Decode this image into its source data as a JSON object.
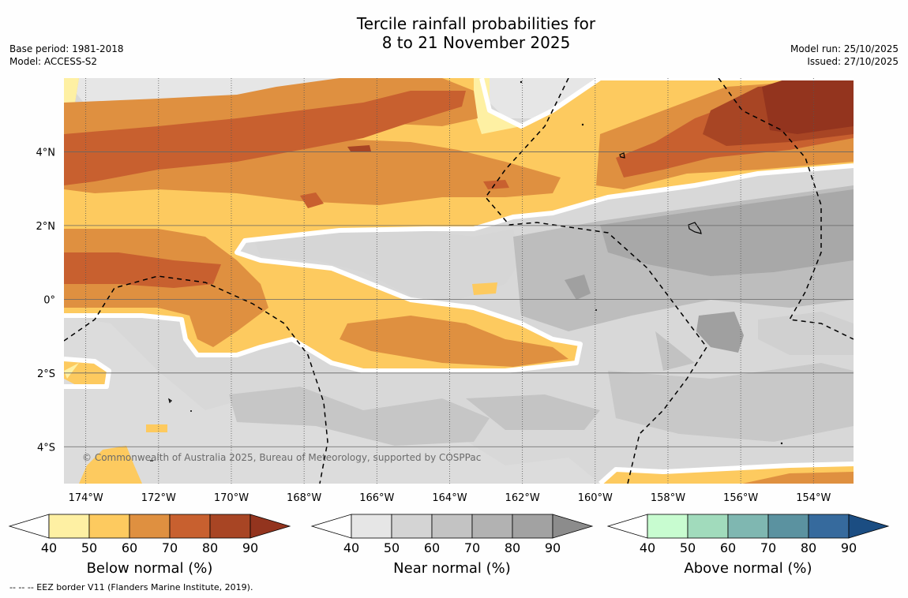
{
  "header": {
    "title_line1": "Tercile rainfall probabilities for",
    "title_line2": "8 to 21 November 2025",
    "base_period": "Base period: 1981-2018",
    "model": "Model: ACCESS-S2",
    "model_run": "Model run: 25/10/2025",
    "issued": "Issued: 27/10/2025"
  },
  "chart_data": {
    "type": "heatmap",
    "title": "Tercile rainfall probabilities for 8 to 21 November 2025",
    "x_ticks": [
      "174°W",
      "172°W",
      "170°W",
      "168°W",
      "166°W",
      "164°W",
      "162°W",
      "160°W",
      "158°W",
      "156°W",
      "154°W"
    ],
    "y_ticks": [
      "4°N",
      "2°N",
      "0°",
      "2°S",
      "4°S"
    ],
    "x_range_lon": [
      -174.6,
      -152.9
    ],
    "y_range_lat": [
      -5.0,
      6.0
    ],
    "copyright": "© Commonwealth of Australia 2025, Bureau of Meteorology, supported by COSPPac",
    "colorbars": [
      {
        "label": "Below normal (%)",
        "ticks": [
          "40",
          "50",
          "60",
          "70",
          "80",
          "90"
        ],
        "colors": [
          "#fef0a3",
          "#fdca5f",
          "#df9040",
          "#c8602f",
          "#a84524",
          "#93341e"
        ]
      },
      {
        "label": "Near normal (%)",
        "ticks": [
          "40",
          "50",
          "60",
          "70",
          "80",
          "90"
        ],
        "colors": [
          "#e6e6e6",
          "#d4d4d4",
          "#c3c3c3",
          "#b2b2b2",
          "#a2a2a2",
          "#8c8c8c"
        ]
      },
      {
        "label": "Above normal (%)",
        "ticks": [
          "40",
          "50",
          "60",
          "70",
          "80",
          "90"
        ],
        "colors": [
          "#c8fcd0",
          "#a1dbbc",
          "#7fb7b1",
          "#5b92a0",
          "#366a9d",
          "#1b4d82"
        ]
      }
    ]
  },
  "footer": {
    "eez_note": "--  --  -- EEZ border V11 (Flanders Marine Institute, 2019)."
  }
}
